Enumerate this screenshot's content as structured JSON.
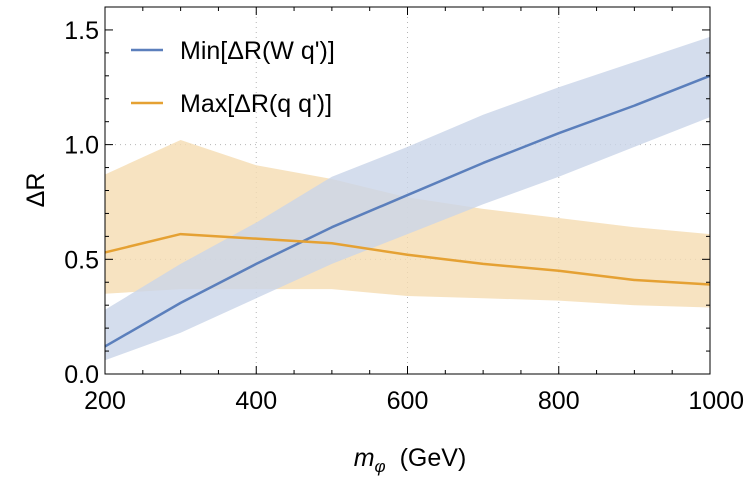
{
  "chart_data": {
    "type": "line",
    "xlabel_var": "m",
    "xlabel_sub": "φ",
    "xlabel_unit": "(GeV)",
    "ylabel": "ΔR",
    "xlim": [
      200,
      1000
    ],
    "ylim": [
      0,
      1.6
    ],
    "x_ticks": [
      200,
      400,
      600,
      800,
      1000
    ],
    "x_tick_labels": [
      "200",
      "400",
      "600",
      "800",
      "1000"
    ],
    "y_ticks": [
      0,
      0.5,
      1.0,
      1.5
    ],
    "y_tick_labels": [
      "0.0",
      "0.5",
      "1.0",
      "1.5"
    ],
    "grid": "dotted, at x=400,600,800 and y=0.5,1.0",
    "legend_placement": "top-left",
    "series": [
      {
        "name": "Min[ΔR(W q')]",
        "color": "#5b7fbc",
        "band_color": "#c9d4e8",
        "x": [
          200,
          300,
          400,
          500,
          600,
          700,
          800,
          900,
          1000
        ],
        "y": [
          0.12,
          0.31,
          0.48,
          0.64,
          0.78,
          0.92,
          1.05,
          1.17,
          1.3
        ],
        "upper": [
          0.28,
          0.48,
          0.66,
          0.86,
          0.99,
          1.13,
          1.25,
          1.36,
          1.47
        ],
        "lower": [
          0.06,
          0.18,
          0.33,
          0.48,
          0.61,
          0.74,
          0.86,
          0.99,
          1.12
        ]
      },
      {
        "name": "Max[ΔR(q q')]",
        "color": "#e5a133",
        "band_color": "#f5dcb2",
        "x": [
          200,
          300,
          400,
          500,
          600,
          700,
          800,
          900,
          1000
        ],
        "y": [
          0.53,
          0.61,
          0.59,
          0.57,
          0.52,
          0.48,
          0.45,
          0.41,
          0.39
        ],
        "upper": [
          0.87,
          1.02,
          0.91,
          0.85,
          0.77,
          0.72,
          0.68,
          0.64,
          0.61
        ],
        "lower": [
          0.35,
          0.37,
          0.37,
          0.37,
          0.34,
          0.33,
          0.32,
          0.3,
          0.29
        ]
      }
    ]
  }
}
